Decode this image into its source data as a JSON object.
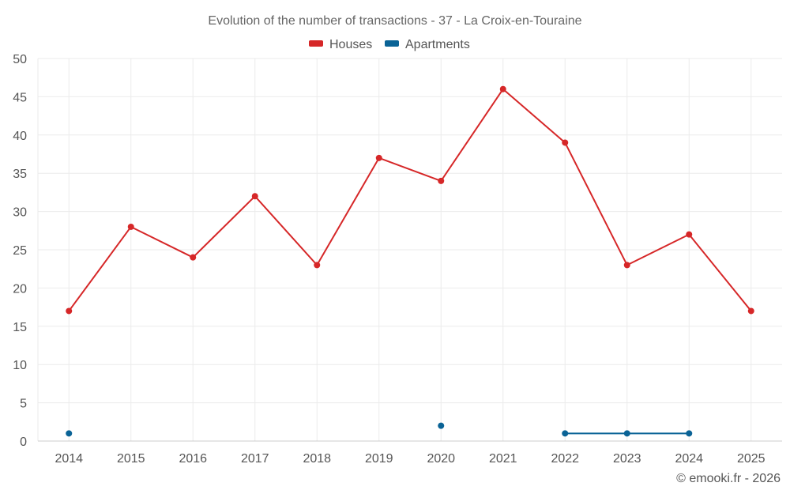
{
  "chart_data": {
    "type": "line",
    "title": "Evolution of the number of transactions - 37 - La Croix-en-Touraine",
    "categories": [
      "2014",
      "2015",
      "2016",
      "2017",
      "2018",
      "2019",
      "2020",
      "2021",
      "2022",
      "2023",
      "2024",
      "2025"
    ],
    "ylim": [
      0,
      50
    ],
    "yticks": [
      0,
      5,
      10,
      15,
      20,
      25,
      30,
      35,
      40,
      45,
      50
    ],
    "grid": true,
    "legend_position": "top-center",
    "series": [
      {
        "name": "Houses",
        "color": "#d62728",
        "values": [
          17,
          28,
          24,
          32,
          23,
          37,
          34,
          46,
          39,
          23,
          27,
          17
        ]
      },
      {
        "name": "Apartments",
        "color": "#0a6396",
        "values": [
          1,
          null,
          null,
          null,
          null,
          null,
          2,
          null,
          1,
          1,
          1,
          null
        ]
      }
    ],
    "xlabel": "",
    "ylabel": ""
  },
  "credit": "© emooki.fr - 2026"
}
